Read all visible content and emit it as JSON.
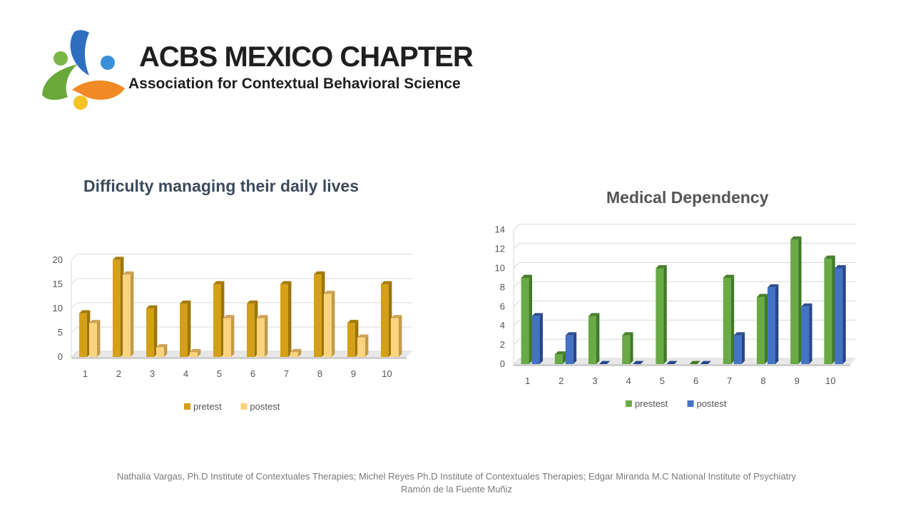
{
  "header": {
    "title": "ACBS MEXICO CHAPTER",
    "subtitle": "Association for Contextual Behavioral Science",
    "colors": {
      "blue": "#3a7bd5",
      "green": "#7ab648",
      "orange": "#f08a24",
      "yellow": "#f7c325"
    }
  },
  "chart_data": [
    {
      "type": "bar",
      "title": "Difficulty managing their daily lives",
      "categories": [
        "1",
        "2",
        "3",
        "4",
        "5",
        "6",
        "7",
        "8",
        "9",
        "10"
      ],
      "series": [
        {
          "name": "pretest",
          "values": [
            9,
            20,
            10,
            11,
            15,
            11,
            15,
            17,
            7,
            15
          ],
          "color": "#d4a017",
          "side": "#9c7508",
          "top": "#a57c0c"
        },
        {
          "name": "postest",
          "values": [
            7,
            17,
            2,
            1,
            8,
            8,
            1,
            13,
            4,
            8
          ],
          "color": "#fcd37e",
          "side": "#c39a4a",
          "top": "#cfa35a"
        }
      ],
      "yticks": [
        0,
        5,
        10,
        15,
        20
      ],
      "ylim": [
        0,
        21
      ],
      "xlabel": "",
      "ylabel": "",
      "legend": "bottom"
    },
    {
      "type": "bar",
      "title": "Medical Dependency",
      "categories": [
        "1",
        "2",
        "3",
        "4",
        "5",
        "6",
        "7",
        "8",
        "9",
        "10"
      ],
      "series": [
        {
          "name": "prestest",
          "values": [
            9,
            1,
            5,
            3,
            10,
            0,
            9,
            7,
            13,
            11
          ],
          "color": "#6aaa46",
          "side": "#3f7a25",
          "top": "#497f2d"
        },
        {
          "name": "postest",
          "values": [
            5,
            3,
            0,
            0,
            0,
            0,
            3,
            8,
            6,
            10
          ],
          "color": "#4472c4",
          "side": "#27468a",
          "top": "#2f4f90"
        }
      ],
      "yticks": [
        0,
        2,
        4,
        6,
        8,
        10,
        12,
        14
      ],
      "ylim": [
        0,
        14.5
      ],
      "xlabel": "",
      "ylabel": "",
      "legend": "bottom"
    }
  ],
  "footer": {
    "line1": "Nathalia Vargas, Ph.D  Institute of Contextuales Therapies; Michel Reyes  Ph.D  Institute of Contextuales Therapies; Edgar Miranda M.C National Institute of Psychiatry",
    "line2": "Ramón de la Fuente Muñiz"
  }
}
